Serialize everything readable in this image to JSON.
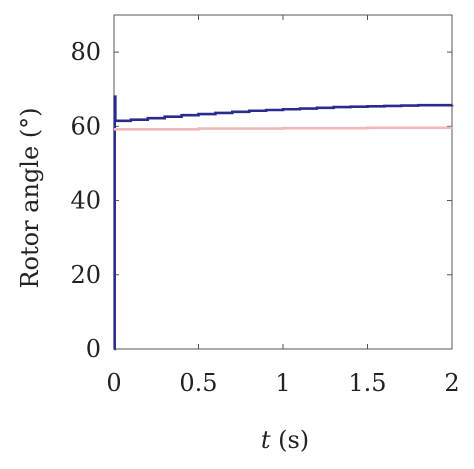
{
  "chart_data": {
    "type": "line",
    "title": "",
    "xlabel_var": "t",
    "xlabel_unit": " (s)",
    "ylabel": "Rotor angle (°)",
    "xlim": [
      0,
      2
    ],
    "ylim": [
      0,
      90
    ],
    "xticks": [
      0,
      0.5,
      1,
      1.5,
      2
    ],
    "xtick_labels": [
      "0",
      "0.5",
      "1",
      "1.5",
      "2"
    ],
    "yticks": [
      0,
      20,
      40,
      60,
      80
    ],
    "ytick_labels": [
      "0",
      "20",
      "40",
      "60",
      "80"
    ],
    "grid": false,
    "series": [
      {
        "color": "#2b2b8f",
        "x": [
          0,
          0.004,
          0.008,
          0.05,
          0.1,
          0.2,
          0.3,
          0.4,
          0.5,
          0.6,
          0.7,
          0.8,
          0.9,
          1.0,
          1.1,
          1.2,
          1.3,
          1.4,
          1.5,
          1.6,
          1.7,
          1.8,
          1.9,
          2.0
        ],
        "y": [
          0,
          68,
          61.5,
          61.5,
          61.8,
          62.2,
          62.6,
          63.0,
          63.3,
          63.6,
          63.9,
          64.2,
          64.4,
          64.6,
          64.8,
          65.0,
          65.2,
          65.3,
          65.4,
          65.5,
          65.6,
          65.7,
          65.7,
          65.8
        ]
      },
      {
        "color": "#f0b8b8",
        "x": [
          0,
          0.5,
          1.0,
          1.5,
          2.0
        ],
        "y": [
          59.2,
          59.4,
          59.5,
          59.6,
          59.7
        ]
      }
    ]
  }
}
